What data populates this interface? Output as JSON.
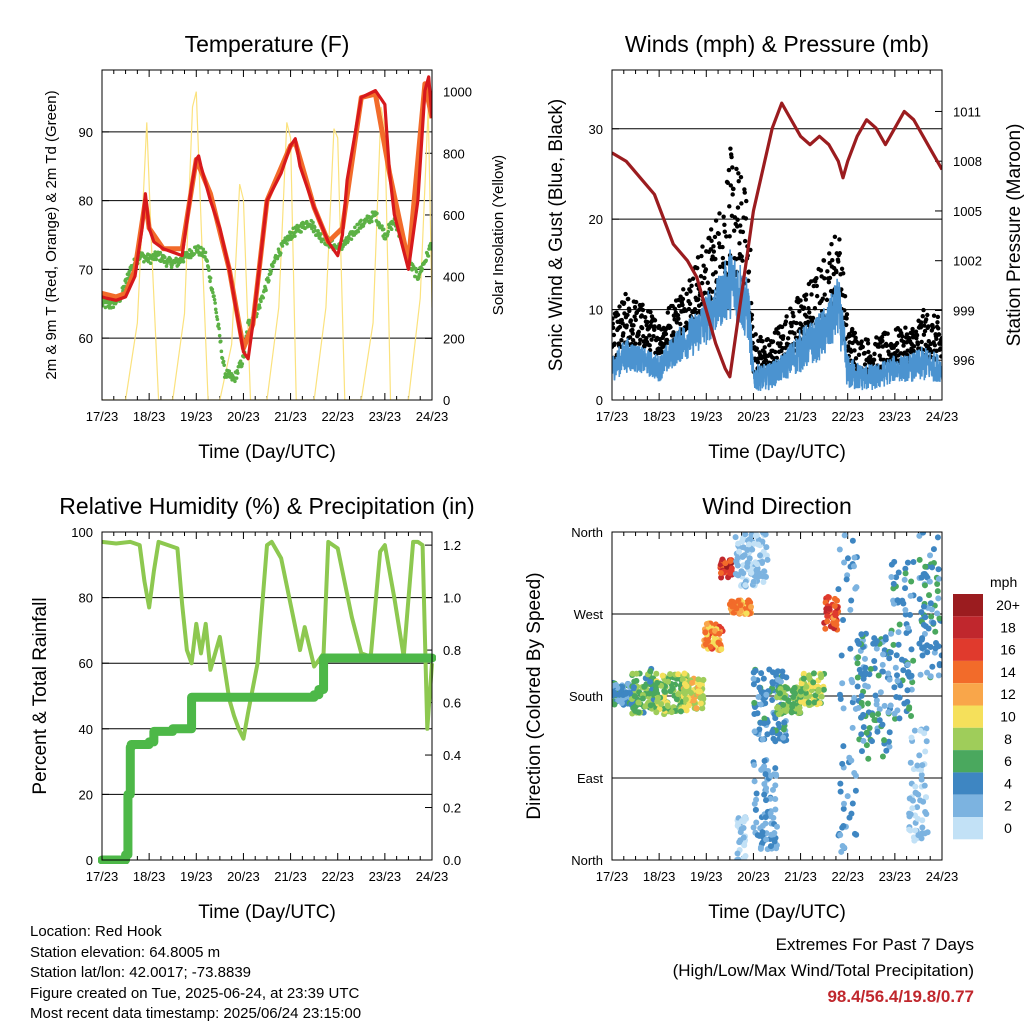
{
  "x_ticks": [
    "17/23",
    "18/23",
    "19/23",
    "20/23",
    "21/23",
    "22/23",
    "23/23",
    "24/23"
  ],
  "xlabel": "Time (Day/UTC)",
  "footer": {
    "location": "Location: Red Hook",
    "elevation": "Station elevation: 64.8005 m",
    "latlon": "Station lat/lon: 42.0017; -73.8839",
    "created": "Figure created on Tue, 2025-06-24, at 23:39 UTC",
    "recent": "Most recent data timestamp: 2025/06/24 23:15:00"
  },
  "extremes": {
    "title": "Extremes For Past 7 Days",
    "subtitle": "(High/Low/Max Wind/Total Precipitation)",
    "values": "98.4/56.4/19.8/0.77",
    "value_color": "#c0272d"
  },
  "chart_data": [
    {
      "type": "line",
      "title": "Temperature (F)",
      "xlabel": "Time (Day/UTC)",
      "ylabel": "2m & 9m T (Red, Orange) & 2m Td (Green)",
      "ylabel_right": "Solar Insolation (Yellow)",
      "xlim": [
        17,
        24
      ],
      "ylim": [
        51,
        99
      ],
      "yticks": [
        60,
        70,
        80,
        90
      ],
      "ylim_right": [
        0,
        1070
      ],
      "yticks_right": [
        0,
        200,
        400,
        600,
        800,
        1000
      ],
      "series": [
        {
          "color": "#d7191c",
          "x": [
            17.0,
            17.1,
            17.3,
            17.5,
            17.7,
            17.85,
            17.92,
            18.0,
            18.1,
            18.3,
            18.5,
            18.7,
            18.9,
            19.0,
            19.05,
            19.1,
            19.3,
            19.5,
            19.7,
            19.9,
            20.0,
            20.1,
            20.2,
            20.5,
            20.8,
            21.0,
            21.1,
            21.2,
            21.5,
            21.8,
            22.0,
            22.1,
            22.2,
            22.5,
            22.8,
            23.0,
            23.1,
            23.2,
            23.5,
            23.7,
            23.85,
            23.93,
            24.0
          ],
          "y": [
            66,
            65.8,
            65.5,
            66,
            69,
            76,
            81,
            76,
            74,
            73,
            72.5,
            72,
            82,
            86,
            86.5,
            85,
            80,
            76,
            70,
            62,
            58,
            57,
            62,
            80,
            84,
            88,
            89,
            85,
            79,
            74,
            72,
            75,
            83,
            95,
            96,
            94,
            84,
            78,
            70,
            80,
            96,
            98,
            92
          ]
        },
        {
          "color": "#f26b2a",
          "x": [
            17.0,
            17.3,
            17.5,
            17.7,
            17.92,
            18.0,
            18.3,
            18.7,
            19.0,
            19.3,
            19.7,
            20.0,
            20.2,
            20.5,
            21.0,
            21.1,
            21.5,
            21.8,
            22.1,
            22.5,
            22.8,
            23.1,
            23.5,
            23.85,
            24.0
          ],
          "y": [
            66.5,
            66,
            66.5,
            70,
            80,
            76,
            73,
            73,
            86,
            81,
            70,
            58.5,
            62,
            80,
            88,
            88.5,
            79,
            74,
            76,
            95,
            95.5,
            84,
            71,
            97,
            92
          ]
        },
        {
          "color": "#5cb145",
          "x": [
            17.0,
            17.2,
            17.4,
            17.6,
            17.8,
            18.0,
            18.2,
            18.4,
            18.6,
            18.8,
            19.0,
            19.2,
            19.4,
            19.6,
            19.8,
            20.0,
            20.1,
            20.3,
            20.5,
            20.7,
            20.9,
            21.0,
            21.2,
            21.4,
            21.6,
            21.8,
            22.0,
            22.2,
            22.4,
            22.6,
            22.8,
            23.0,
            23.2,
            23.4,
            23.5,
            23.7,
            23.9,
            24.0
          ],
          "y": [
            65,
            64.8,
            66,
            70,
            72,
            71.5,
            72,
            71,
            71,
            72,
            73,
            72,
            65,
            55,
            54,
            57,
            62,
            64,
            68,
            72,
            74,
            75,
            76,
            77,
            75,
            74,
            73,
            74,
            76,
            77,
            78,
            75,
            77,
            74,
            71,
            69,
            72,
            74
          ]
        },
        {
          "color": "#fbe27e",
          "x": [
            17.0,
            17.5,
            17.75,
            17.95,
            18.05,
            18.2,
            18.5,
            18.75,
            18.92,
            19.0,
            19.12,
            19.25,
            19.5,
            19.75,
            19.92,
            20.0,
            20.15,
            20.5,
            20.75,
            20.92,
            21.0,
            21.12,
            21.5,
            21.75,
            21.92,
            22.0,
            22.15,
            22.5,
            22.75,
            22.92,
            23.0,
            23.12,
            23.5,
            23.75,
            23.92,
            24.0
          ],
          "y": [
            0,
            0,
            250,
            900,
            500,
            0,
            0,
            280,
            950,
            1000,
            500,
            0,
            0,
            180,
            700,
            650,
            0,
            0,
            300,
            900,
            850,
            0,
            0,
            300,
            880,
            850,
            0,
            0,
            250,
            950,
            880,
            0,
            0,
            330,
            950,
            300
          ]
        }
      ]
    },
    {
      "type": "line",
      "title": "Winds (mph) & Pressure (mb)",
      "xlabel": "Time (Day/UTC)",
      "ylabel": "Sonic Wind & Gust (Blue, Black)",
      "ylabel_right": "Station Pressure (Maroon)",
      "xlim": [
        17,
        24
      ],
      "ylim": [
        0,
        36.5
      ],
      "yticks": [
        0,
        10,
        20,
        30
      ],
      "ylim_right": [
        993.6,
        1013.5
      ],
      "yticks_right": [
        996,
        999,
        1002,
        1005,
        1008,
        1011
      ],
      "series": [
        {
          "name": "Gust",
          "color": "#000000",
          "kind": "band",
          "x": [
            17.0,
            17.3,
            17.6,
            18.0,
            18.4,
            18.8,
            19.0,
            19.3,
            19.5,
            19.7,
            19.9,
            20.0,
            20.3,
            20.6,
            21.0,
            21.3,
            21.6,
            21.8,
            22.0,
            22.3,
            22.6,
            23.0,
            23.3,
            23.6,
            24.0
          ],
          "lo": [
            4,
            6,
            6,
            5,
            7,
            9,
            10,
            12,
            14,
            13,
            10,
            3,
            3,
            4,
            6,
            7,
            9,
            12,
            4,
            3,
            3,
            4,
            4,
            5,
            4
          ],
          "hi": [
            9,
            12,
            11,
            9,
            12,
            16,
            18,
            22,
            28,
            26,
            22,
            8,
            7,
            9,
            12,
            14,
            17,
            20,
            9,
            7,
            7,
            8,
            8,
            10,
            9
          ]
        },
        {
          "name": "Wind",
          "color": "#4b93d0",
          "kind": "band",
          "x": [
            17.0,
            17.3,
            17.6,
            18.0,
            18.4,
            18.8,
            19.0,
            19.3,
            19.5,
            19.7,
            19.9,
            20.0,
            20.3,
            20.6,
            21.0,
            21.3,
            21.6,
            21.8,
            22.0,
            22.3,
            22.6,
            23.0,
            23.3,
            23.6,
            24.0
          ],
          "lo": [
            2,
            3,
            3,
            2,
            4,
            5,
            6,
            8,
            9,
            8,
            6,
            1,
            1,
            2,
            3,
            4,
            5,
            7,
            1,
            1,
            1,
            2,
            2,
            2,
            2
          ],
          "hi": [
            5,
            7,
            6,
            5,
            8,
            10,
            12,
            14,
            17,
            16,
            13,
            4,
            4,
            5,
            8,
            9,
            11,
            14,
            5,
            4,
            4,
            5,
            5,
            6,
            5
          ]
        },
        {
          "name": "Pressure",
          "color": "#9b1c1f",
          "axis": "right",
          "x": [
            17.0,
            17.3,
            17.6,
            17.9,
            18.1,
            18.3,
            18.6,
            18.8,
            19.0,
            19.2,
            19.4,
            19.5,
            19.6,
            19.8,
            20.0,
            20.2,
            20.4,
            20.6,
            20.8,
            21.0,
            21.2,
            21.4,
            21.6,
            21.8,
            21.9,
            22.0,
            22.2,
            22.4,
            22.6,
            22.8,
            23.0,
            23.2,
            23.4,
            23.6,
            23.8,
            24.0
          ],
          "y": [
            1008.5,
            1008,
            1007,
            1006,
            1004.5,
            1003,
            1002,
            1001,
            999,
            997,
            995.5,
            995,
            997,
            1001,
            1005,
            1007.5,
            1010,
            1011.5,
            1010.5,
            1009.5,
            1009,
            1009.5,
            1009,
            1008,
            1007,
            1008,
            1009.5,
            1010.5,
            1010,
            1009,
            1010,
            1011,
            1010.5,
            1009.5,
            1008.5,
            1007.5
          ]
        }
      ]
    },
    {
      "type": "line",
      "title": "Relative Humidity (%) & Precipitation (in)",
      "xlabel": "Time (Day/UTC)",
      "ylabel": "Percent & Total Rainfall",
      "xlim": [
        17,
        24
      ],
      "ylim": [
        0,
        100
      ],
      "yticks": [
        0,
        20,
        40,
        60,
        80,
        100
      ],
      "ylim_right": [
        0,
        1.25
      ],
      "yticks_right": [
        "0.0",
        "0.2",
        "0.4",
        "0.6",
        "0.8",
        "1.0",
        "1.2"
      ],
      "series": [
        {
          "name": "Relative Humidity",
          "color": "#8dc850",
          "x": [
            17.0,
            17.3,
            17.6,
            17.8,
            17.9,
            18.0,
            18.1,
            18.2,
            18.4,
            18.6,
            18.7,
            18.8,
            18.9,
            19.0,
            19.1,
            19.2,
            19.3,
            19.5,
            19.7,
            19.8,
            19.9,
            20.0,
            20.1,
            20.3,
            20.5,
            20.6,
            20.8,
            21.0,
            21.2,
            21.3,
            21.5,
            21.7,
            21.8,
            22.0,
            22.3,
            22.5,
            22.7,
            22.9,
            23.0,
            23.2,
            23.4,
            23.6,
            23.7,
            23.8,
            23.9,
            24.0
          ],
          "y": [
            97,
            96.5,
            97,
            96,
            85,
            77,
            88,
            97,
            96,
            95,
            78,
            64,
            60,
            72,
            63,
            72,
            58,
            68,
            49,
            44,
            40,
            37,
            45,
            60,
            96,
            97,
            92,
            78,
            64,
            71,
            59,
            63,
            97,
            95,
            74,
            63,
            62,
            94,
            96,
            80,
            62,
            97,
            97,
            96,
            40,
            60
          ]
        },
        {
          "name": "Total Rainfall",
          "color": "#4db848",
          "axis": "right",
          "step": true,
          "x": [
            17.0,
            17.2,
            17.5,
            17.55,
            17.6,
            17.62,
            17.9,
            18.0,
            18.1,
            18.3,
            18.5,
            18.7,
            18.85,
            18.9,
            19.5,
            20.0,
            20.5,
            21.0,
            21.5,
            21.6,
            21.7,
            22.0,
            22.5,
            23.0,
            23.5,
            24.0
          ],
          "y": [
            0,
            0.0,
            0.02,
            0.25,
            0.43,
            0.44,
            0.44,
            0.45,
            0.49,
            0.49,
            0.5,
            0.5,
            0.5,
            0.62,
            0.62,
            0.62,
            0.62,
            0.62,
            0.63,
            0.65,
            0.77,
            0.77,
            0.77,
            0.77,
            0.77,
            0.77
          ]
        }
      ]
    },
    {
      "type": "scatter",
      "title": "Wind Direction",
      "xlabel": "Time (Day/UTC)",
      "ylabel": "Direction (Colored By Speed)",
      "xlim": [
        17,
        24
      ],
      "ylim": [
        0,
        360
      ],
      "yticks": [
        0,
        90,
        180,
        270,
        360
      ],
      "ytick_labels": [
        "North",
        "East",
        "South",
        "West",
        "North"
      ],
      "colorbar": {
        "title": "mph",
        "labels": [
          "20+",
          "18",
          "16",
          "14",
          "12",
          "10",
          "8",
          "6",
          "4",
          "2",
          "0"
        ],
        "colors": [
          "#9b1c1f",
          "#c0272d",
          "#e03a2d",
          "#f26b2a",
          "#f9a64a",
          "#f5e05b",
          "#9fcd5a",
          "#4aa85e",
          "#3e86c2",
          "#7cb3e0",
          "#c2e1f6"
        ]
      },
      "clusters": [
        {
          "x": [
            17.0,
            17.45
          ],
          "dir": [
            170,
            195
          ],
          "speed": [
            2,
            6
          ]
        },
        {
          "x": [
            17.4,
            17.9
          ],
          "dir": [
            160,
            210
          ],
          "speed": [
            4,
            9
          ]
        },
        {
          "x": [
            17.9,
            18.6
          ],
          "dir": [
            160,
            205
          ],
          "speed": [
            5,
            10
          ]
        },
        {
          "x": [
            18.5,
            18.95
          ],
          "dir": [
            165,
            200
          ],
          "speed": [
            7,
            12
          ]
        },
        {
          "x": [
            18.95,
            19.35
          ],
          "dir": [
            230,
            260
          ],
          "speed": [
            10,
            16
          ]
        },
        {
          "x": [
            19.3,
            19.55
          ],
          "dir": [
            310,
            330
          ],
          "speed": [
            14,
            20
          ]
        },
        {
          "x": [
            19.5,
            19.95
          ],
          "dir": [
            270,
            285
          ],
          "speed": [
            10,
            15
          ]
        },
        {
          "x": [
            19.6,
            20.3
          ],
          "dir": [
            300,
            360
          ],
          "speed": [
            0,
            3
          ]
        },
        {
          "x": [
            19.65,
            19.85
          ],
          "dir": [
            0,
            50
          ],
          "speed": [
            0,
            2
          ]
        },
        {
          "x": [
            20.0,
            20.5
          ],
          "dir": [
            10,
            110
          ],
          "speed": [
            1,
            4
          ]
        },
        {
          "x": [
            20.0,
            20.7
          ],
          "dir": [
            130,
            210
          ],
          "speed": [
            2,
            6
          ]
        },
        {
          "x": [
            20.5,
            21.0
          ],
          "dir": [
            160,
            190
          ],
          "speed": [
            5,
            9
          ]
        },
        {
          "x": [
            21.0,
            21.5
          ],
          "dir": [
            170,
            205
          ],
          "speed": [
            6,
            11
          ]
        },
        {
          "x": [
            21.5,
            21.8
          ],
          "dir": [
            250,
            290
          ],
          "speed": [
            12,
            18
          ]
        },
        {
          "x": [
            21.8,
            22.2
          ],
          "dir": [
            5,
            360
          ],
          "speed": [
            1,
            5
          ]
        },
        {
          "x": [
            22.2,
            22.9
          ],
          "dir": [
            110,
            250
          ],
          "speed": [
            2,
            7
          ]
        },
        {
          "x": [
            22.9,
            23.4
          ],
          "dir": [
            150,
            330
          ],
          "speed": [
            2,
            6
          ]
        },
        {
          "x": [
            23.3,
            23.7
          ],
          "dir": [
            20,
            150
          ],
          "speed": [
            0,
            3
          ]
        },
        {
          "x": [
            23.5,
            24.0
          ],
          "dir": [
            200,
            360
          ],
          "speed": [
            2,
            6
          ]
        }
      ]
    }
  ]
}
